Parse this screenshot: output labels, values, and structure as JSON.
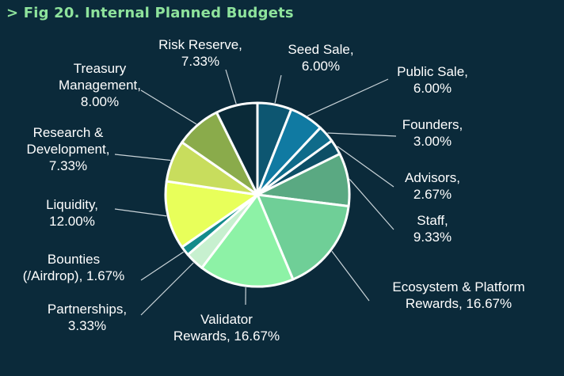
{
  "figure": {
    "title": "> Fig 20. Internal Planned Budgets"
  },
  "chart_data": {
    "type": "pie",
    "title": "Fig 20. Internal Planned Budgets",
    "slices": [
      {
        "name": "Seed Sale",
        "label_lines": [
          "Seed Sale,",
          "6.00%"
        ],
        "value": 6.0,
        "color": "#0d5671"
      },
      {
        "name": "Public Sale",
        "label_lines": [
          "Public Sale,",
          "6.00%"
        ],
        "value": 6.0,
        "color": "#107aa2"
      },
      {
        "name": "Founders",
        "label_lines": [
          "Founders,",
          "3.00%"
        ],
        "value": 3.0,
        "color": "#0f6b8a"
      },
      {
        "name": "Advisors",
        "label_lines": [
          "Advisors,",
          "2.67%"
        ],
        "value": 2.67,
        "color": "#0d4f66"
      },
      {
        "name": "Staff",
        "label_lines": [
          "Staff,",
          "9.33%"
        ],
        "value": 9.33,
        "color": "#5aa982"
      },
      {
        "name": "Ecosystem & Platform Rewards",
        "label_lines": [
          "Ecosystem & Platform",
          "Rewards, 16.67%"
        ],
        "value": 16.67,
        "color": "#6fcf97"
      },
      {
        "name": "Validator Rewards",
        "label_lines": [
          "Validator",
          "Rewards, 16.67%"
        ],
        "value": 16.67,
        "color": "#8df2a6"
      },
      {
        "name": "Partnerships",
        "label_lines": [
          "Partnerships,",
          "3.33%"
        ],
        "value": 3.33,
        "color": "#c7f0cf"
      },
      {
        "name": "Bounties (/Airdrop)",
        "label_lines": [
          "Bounties",
          "(/Airdrop), 1.67%"
        ],
        "value": 1.67,
        "color": "#138b8b"
      },
      {
        "name": "Liquidity",
        "label_lines": [
          "Liquidity,",
          "12.00%"
        ],
        "value": 12.0,
        "color": "#e8ff5a"
      },
      {
        "name": "Research & Development",
        "label_lines": [
          "Research &",
          "Development,",
          "7.33%"
        ],
        "value": 7.33,
        "color": "#c8dd5d"
      },
      {
        "name": "Treasury Management",
        "label_lines": [
          "Treasury",
          "Management,",
          "8.00%"
        ],
        "value": 8.0,
        "color": "#8aab4b"
      },
      {
        "name": "Risk Reserve",
        "label_lines": [
          "Risk Reserve,",
          "7.33%"
        ],
        "value": 7.33,
        "color": "#0a2a38"
      }
    ]
  }
}
